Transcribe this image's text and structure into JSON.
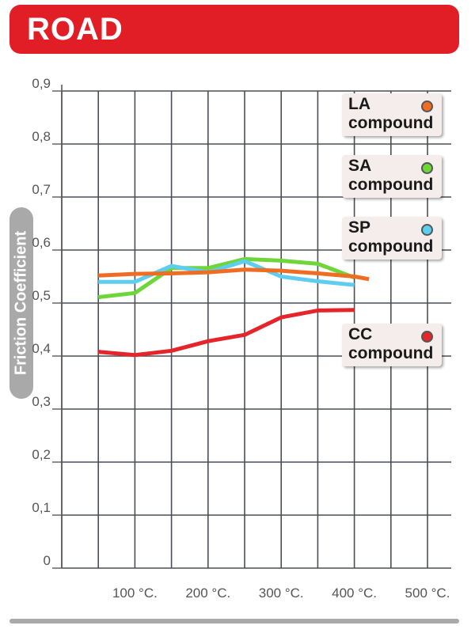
{
  "header": {
    "title": "ROAD"
  },
  "colors": {
    "title_bar": "#e11d26",
    "grid": "#4a4f55",
    "axis": "#5a5a5a",
    "pill": "#a9a9a9"
  },
  "chart_data": {
    "type": "line",
    "title": "ROAD",
    "ylabel": "Friction Coefficient",
    "xlabel": "",
    "ylim": [
      0,
      0.9
    ],
    "xlim": [
      0,
      500
    ],
    "yticks": [
      "0",
      "0,1",
      "0,2",
      "0,3",
      "0,4",
      "0,5",
      "0,6",
      "0,7",
      "0,8",
      "0,9"
    ],
    "xticks": [
      "100 °C.",
      "200 °C.",
      "300 °C.",
      "400 °C.",
      "500 °C."
    ],
    "grid": true,
    "legend_position": "right",
    "series": [
      {
        "name": "CC",
        "subname": "compound",
        "color": "#e5252a",
        "x": [
          50,
          100,
          150,
          200,
          250,
          300,
          350,
          400
        ],
        "y": [
          0.408,
          0.402,
          0.41,
          0.428,
          0.44,
          0.473,
          0.486,
          0.487
        ]
      },
      {
        "name": "SA",
        "subname": "compound",
        "color": "#6fd63a",
        "x": [
          50,
          100,
          150,
          200,
          250,
          300,
          350,
          400
        ],
        "y": [
          0.511,
          0.519,
          0.566,
          0.566,
          0.583,
          0.58,
          0.574,
          0.548
        ]
      },
      {
        "name": "SP",
        "subname": "compound",
        "color": "#5dcdf0",
        "x": [
          50,
          100,
          150,
          200,
          250,
          300,
          350,
          400
        ],
        "y": [
          0.54,
          0.54,
          0.57,
          0.558,
          0.579,
          0.55,
          0.541,
          0.534
        ]
      },
      {
        "name": "LA",
        "subname": "compound",
        "color": "#ef6d22",
        "x": [
          50,
          100,
          150,
          200,
          250,
          300,
          350,
          400,
          420
        ],
        "y": [
          0.552,
          0.555,
          0.556,
          0.558,
          0.563,
          0.561,
          0.556,
          0.55,
          0.545
        ]
      }
    ]
  }
}
